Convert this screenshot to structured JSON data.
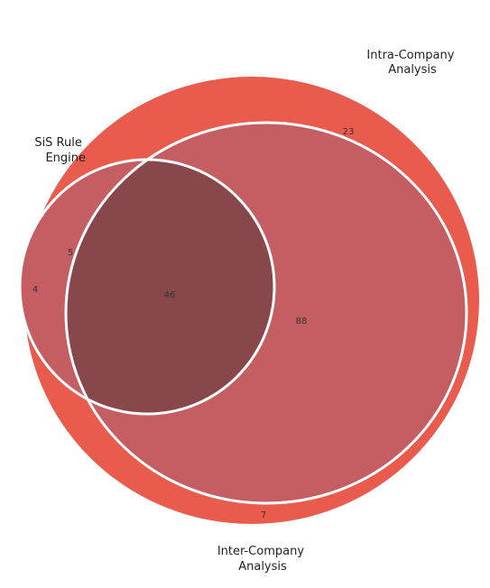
{
  "sets": [
    {
      "id": "intra",
      "label_lines": [
        "Intra-Company",
        "Analysis"
      ],
      "color": "#e85b4d"
    },
    {
      "id": "inter",
      "label_lines": [
        "Inter-Company",
        "Analysis"
      ],
      "color": "#c45e63"
    },
    {
      "id": "sis",
      "label_lines": [
        "SiS Rule",
        "Engine"
      ],
      "color": "#c45e63"
    }
  ],
  "regions": {
    "intra_only": "23",
    "intra_and_inter": "88",
    "inter_only": "7",
    "sis_only": "4",
    "sis_and_inter": "5",
    "all_three": "46"
  },
  "colors": {
    "intra_fill": "#e85b4d",
    "inter_fill": "#c45e63",
    "all_three_fill": "#88474a",
    "outline": "#ffffff"
  }
}
